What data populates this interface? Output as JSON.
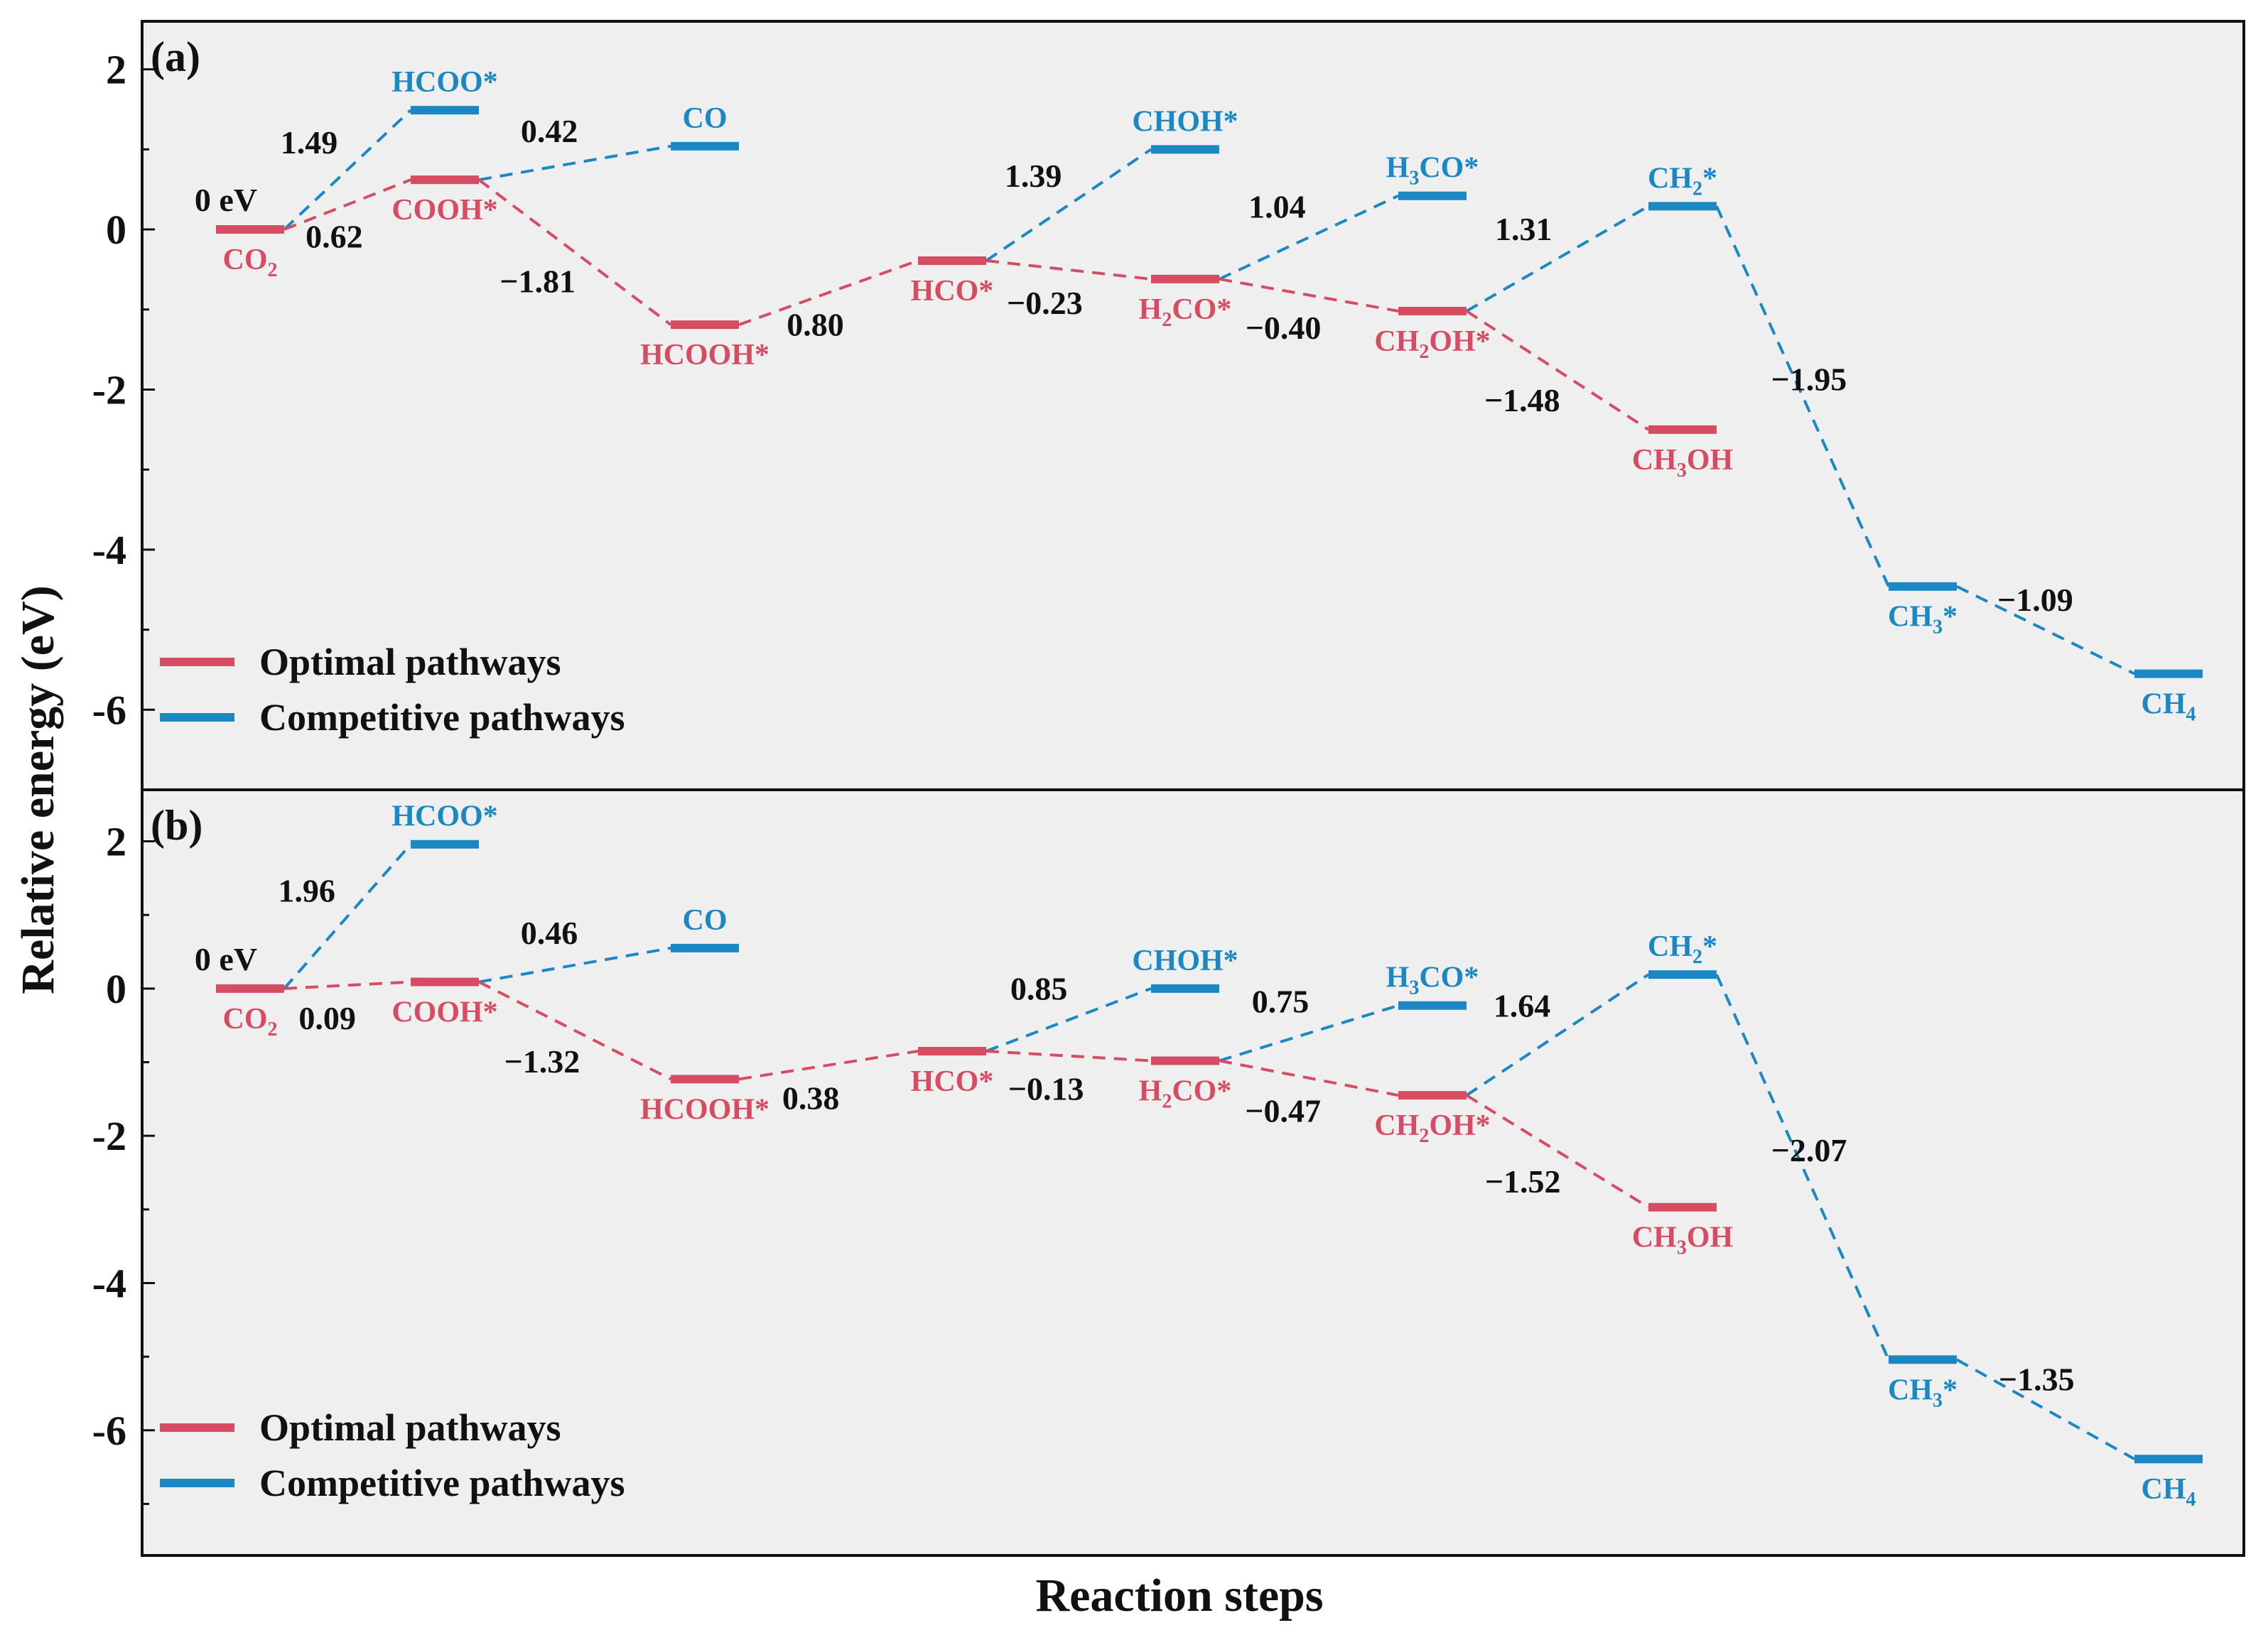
{
  "chart_data": {
    "type": "energy_profile",
    "xlabel": "Reaction steps",
    "ylabel": "Relative energy (eV)",
    "legend": [
      {
        "name": "Optimal pathways",
        "color": "#d64d63"
      },
      {
        "name": "Competitive pathways",
        "color": "#1b88c4"
      }
    ],
    "panels": [
      {
        "label": "(a)",
        "ylim": [
          -7,
          2.6
        ],
        "yticks": [
          "2",
          "0",
          "-2",
          "-4",
          "-6"
        ],
        "zero_label": "0 eV",
        "levels": [
          {
            "name": "CO",
            "sub": "2",
            "post": "",
            "step": 0,
            "energy": 0,
            "path": "optimal"
          },
          {
            "name": "HCOO*",
            "sub": "",
            "post": "",
            "step": 1,
            "energy": 1.49,
            "path": "competitive"
          },
          {
            "name": "COOH*",
            "sub": "",
            "post": "",
            "step": 1,
            "energy": 0.62,
            "path": "optimal"
          },
          {
            "name": "CO",
            "sub": "",
            "post": "",
            "step": 2,
            "energy": 1.04,
            "path": "competitive"
          },
          {
            "name": "HCOOH*",
            "sub": "",
            "post": "",
            "step": 2,
            "energy": -1.19,
            "path": "optimal"
          },
          {
            "name": "HCO*",
            "sub": "",
            "post": "",
            "step": 3,
            "energy": -0.39,
            "path": "optimal"
          },
          {
            "name": "CHOH*",
            "sub": "",
            "post": "",
            "step": 4,
            "energy": 1.0,
            "path": "competitive"
          },
          {
            "name": "H",
            "sub": "2",
            "post": "CO*",
            "step": 4,
            "energy": -0.62,
            "path": "optimal"
          },
          {
            "name": "H",
            "sub": "3",
            "post": "CO*",
            "step": 5,
            "energy": 0.42,
            "path": "competitive"
          },
          {
            "name": "CH",
            "sub": "2",
            "post": "OH*",
            "step": 5,
            "energy": -1.02,
            "path": "optimal"
          },
          {
            "name": "CH",
            "sub": "2",
            "post": "*",
            "step": 6,
            "energy": 0.29,
            "path": "competitive"
          },
          {
            "name": "CH",
            "sub": "3",
            "post": "OH",
            "step": 6,
            "energy": -2.5,
            "path": "optimal"
          },
          {
            "name": "CH",
            "sub": "3",
            "post": "*",
            "step": 7,
            "energy": -4.46,
            "path": "competitive"
          },
          {
            "name": "CH",
            "sub": "4",
            "post": "",
            "step": 8,
            "energy": -5.55,
            "path": "competitive"
          }
        ],
        "connections": [
          {
            "from": 0,
            "to": 1,
            "label": "1.49",
            "path": "competitive"
          },
          {
            "from": 0,
            "to": 2,
            "label": "0.62",
            "path": "optimal"
          },
          {
            "from": 2,
            "to": 3,
            "label": "0.42",
            "path": "competitive"
          },
          {
            "from": 2,
            "to": 4,
            "label": "−1.81",
            "path": "optimal"
          },
          {
            "from": 4,
            "to": 5,
            "label": "0.80",
            "path": "optimal"
          },
          {
            "from": 5,
            "to": 6,
            "label": "1.39",
            "path": "competitive"
          },
          {
            "from": 5,
            "to": 7,
            "label": "−0.23",
            "path": "optimal"
          },
          {
            "from": 7,
            "to": 8,
            "label": "1.04",
            "path": "competitive"
          },
          {
            "from": 7,
            "to": 9,
            "label": "−0.40",
            "path": "optimal"
          },
          {
            "from": 9,
            "to": 10,
            "label": "1.31",
            "path": "competitive"
          },
          {
            "from": 9,
            "to": 11,
            "label": "−1.48",
            "path": "optimal"
          },
          {
            "from": 10,
            "to": 12,
            "label": "−1.95",
            "path": "competitive"
          },
          {
            "from": 12,
            "to": 13,
            "label": "−1.09",
            "path": "competitive"
          }
        ]
      },
      {
        "label": "(b)",
        "ylim": [
          -7.7,
          2.7
        ],
        "yticks": [
          "2",
          "0",
          "-2",
          "-4",
          "-6"
        ],
        "zero_label": "0 eV",
        "levels": [
          {
            "name": "CO",
            "sub": "2",
            "post": "",
            "step": 0,
            "energy": 0,
            "path": "optimal"
          },
          {
            "name": "HCOO*",
            "sub": "",
            "post": "",
            "step": 1,
            "energy": 1.96,
            "path": "competitive"
          },
          {
            "name": "COOH*",
            "sub": "",
            "post": "",
            "step": 1,
            "energy": 0.09,
            "path": "optimal"
          },
          {
            "name": "CO",
            "sub": "",
            "post": "",
            "step": 2,
            "energy": 0.55,
            "path": "competitive"
          },
          {
            "name": "HCOOH*",
            "sub": "",
            "post": "",
            "step": 2,
            "energy": -1.23,
            "path": "optimal"
          },
          {
            "name": "HCO*",
            "sub": "",
            "post": "",
            "step": 3,
            "energy": -0.85,
            "path": "optimal"
          },
          {
            "name": "CHOH*",
            "sub": "",
            "post": "",
            "step": 4,
            "energy": 0.0,
            "path": "competitive"
          },
          {
            "name": "H",
            "sub": "2",
            "post": "CO*",
            "step": 4,
            "energy": -0.98,
            "path": "optimal"
          },
          {
            "name": "H",
            "sub": "3",
            "post": "CO*",
            "step": 5,
            "energy": -0.23,
            "path": "competitive"
          },
          {
            "name": "CH",
            "sub": "2",
            "post": "OH*",
            "step": 5,
            "energy": -1.45,
            "path": "optimal"
          },
          {
            "name": "CH",
            "sub": "2",
            "post": "*",
            "step": 6,
            "energy": 0.19,
            "path": "competitive"
          },
          {
            "name": "CH",
            "sub": "3",
            "post": "OH",
            "step": 6,
            "energy": -2.97,
            "path": "optimal"
          },
          {
            "name": "CH",
            "sub": "3",
            "post": "*",
            "step": 7,
            "energy": -5.04,
            "path": "competitive"
          },
          {
            "name": "CH",
            "sub": "4",
            "post": "",
            "step": 8,
            "energy": -6.39,
            "path": "competitive"
          }
        ],
        "connections": [
          {
            "from": 0,
            "to": 1,
            "label": "1.96",
            "path": "competitive"
          },
          {
            "from": 0,
            "to": 2,
            "label": "0.09",
            "path": "optimal"
          },
          {
            "from": 2,
            "to": 3,
            "label": "0.46",
            "path": "competitive"
          },
          {
            "from": 2,
            "to": 4,
            "label": "−1.32",
            "path": "optimal"
          },
          {
            "from": 4,
            "to": 5,
            "label": "0.38",
            "path": "optimal"
          },
          {
            "from": 5,
            "to": 6,
            "label": "0.85",
            "path": "competitive"
          },
          {
            "from": 5,
            "to": 7,
            "label": "−0.13",
            "path": "optimal"
          },
          {
            "from": 7,
            "to": 8,
            "label": "0.75",
            "path": "competitive"
          },
          {
            "from": 7,
            "to": 9,
            "label": "−0.47",
            "path": "optimal"
          },
          {
            "from": 9,
            "to": 10,
            "label": "1.64",
            "path": "competitive"
          },
          {
            "from": 9,
            "to": 11,
            "label": "−1.52",
            "path": "optimal"
          },
          {
            "from": 10,
            "to": 12,
            "label": "−2.07",
            "path": "competitive"
          },
          {
            "from": 12,
            "to": 13,
            "label": "−1.35",
            "path": "competitive"
          }
        ]
      }
    ]
  }
}
